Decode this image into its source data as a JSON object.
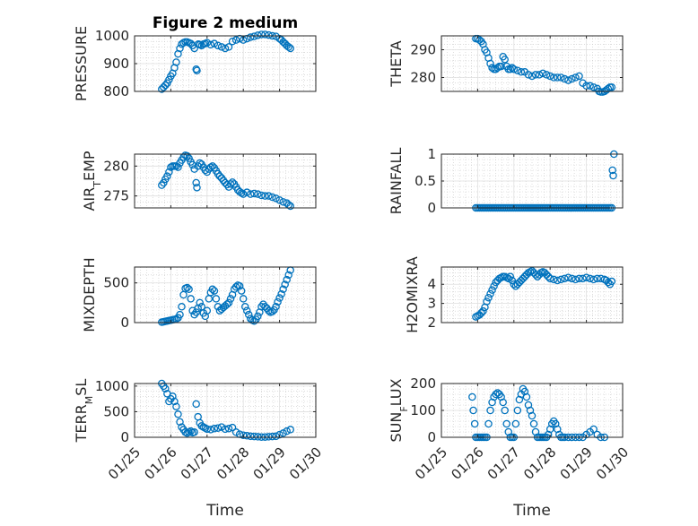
{
  "colors": {
    "marker": "#0072bd",
    "axis": "#262626",
    "grid": "#dfdfdf",
    "background": "#ffffff"
  },
  "figure": {
    "title": "Figure 2 medium",
    "xlabel": "Time"
  },
  "chart_data": [
    {
      "id": "pressure",
      "type": "scatter",
      "title": "Figure 2 medium",
      "ylabel": "PRESSURE",
      "xlim": [
        0,
        5
      ],
      "ylim": [
        800,
        1000
      ],
      "yticks": [
        800,
        900,
        1000
      ],
      "xtick_labels": [],
      "grid": true,
      "minor_grid": true,
      "x": [
        0.75,
        0.8,
        0.85,
        0.9,
        0.95,
        1.0,
        1.05,
        1.1,
        1.15,
        1.2,
        1.25,
        1.3,
        1.35,
        1.4,
        1.45,
        1.5,
        1.55,
        1.6,
        1.65,
        1.7,
        1.72,
        1.76,
        1.8,
        1.85,
        1.9,
        1.95,
        2.0,
        2.1,
        2.2,
        2.3,
        2.4,
        2.5,
        2.6,
        2.7,
        2.8,
        2.9,
        3.0,
        3.1,
        3.2,
        3.3,
        3.4,
        3.5,
        3.6,
        3.7,
        3.8,
        3.9,
        4.0,
        4.05,
        4.1,
        4.15,
        4.2,
        4.25,
        4.3
      ],
      "y": [
        808,
        815,
        822,
        830,
        842,
        855,
        865,
        885,
        905,
        935,
        955,
        970,
        975,
        978,
        978,
        975,
        972,
        965,
        955,
        880,
        875,
        970,
        968,
        965,
        970,
        972,
        975,
        968,
        972,
        965,
        960,
        955,
        960,
        980,
        985,
        990,
        985,
        990,
        995,
        998,
        1002,
        1005,
        1005,
        1003,
        1000,
        998,
        990,
        985,
        978,
        972,
        965,
        960,
        955
      ]
    },
    {
      "id": "theta",
      "type": "scatter",
      "ylabel": "THETA",
      "xlim": [
        0,
        5
      ],
      "ylim": [
        275,
        295
      ],
      "yticks": [
        280,
        290
      ],
      "xtick_labels": [],
      "grid": true,
      "minor_grid": true,
      "x": [
        0.95,
        1.0,
        1.05,
        1.1,
        1.15,
        1.2,
        1.25,
        1.3,
        1.35,
        1.4,
        1.45,
        1.5,
        1.55,
        1.6,
        1.65,
        1.7,
        1.75,
        1.8,
        1.85,
        1.9,
        1.95,
        2.0,
        2.1,
        2.2,
        2.3,
        2.4,
        2.5,
        2.6,
        2.7,
        2.8,
        2.9,
        3.0,
        3.1,
        3.2,
        3.3,
        3.4,
        3.5,
        3.6,
        3.7,
        3.8,
        3.9,
        4.0,
        4.1,
        4.2,
        4.3,
        4.35,
        4.4,
        4.45,
        4.5,
        4.55,
        4.6,
        4.65,
        4.7
      ],
      "y": [
        294,
        294,
        293.5,
        293,
        292,
        290,
        289,
        287,
        285,
        283.5,
        283,
        283,
        283.5,
        284,
        284,
        287.5,
        286.5,
        284,
        283,
        283,
        283.5,
        283,
        282.5,
        282,
        282,
        281,
        280.5,
        281,
        281,
        281.5,
        281,
        280.5,
        280,
        280,
        280,
        279.5,
        279,
        279.5,
        280,
        280.5,
        278,
        277,
        277,
        276.5,
        276,
        275,
        274.8,
        274.8,
        275,
        275.5,
        276,
        276.5,
        276.5
      ]
    },
    {
      "id": "air_temp",
      "type": "scatter",
      "ylabel": "AIR_TEMP",
      "xlim": [
        0,
        5
      ],
      "ylim": [
        273,
        282
      ],
      "yticks": [
        275,
        280
      ],
      "xtick_labels": [],
      "grid": true,
      "minor_grid": true,
      "x": [
        0.75,
        0.8,
        0.85,
        0.9,
        0.95,
        1.0,
        1.05,
        1.1,
        1.15,
        1.2,
        1.25,
        1.3,
        1.35,
        1.4,
        1.45,
        1.5,
        1.55,
        1.6,
        1.65,
        1.7,
        1.72,
        1.75,
        1.8,
        1.85,
        1.9,
        1.95,
        2.0,
        2.05,
        2.1,
        2.15,
        2.2,
        2.25,
        2.3,
        2.35,
        2.4,
        2.45,
        2.5,
        2.55,
        2.6,
        2.65,
        2.7,
        2.75,
        2.8,
        2.85,
        2.9,
        2.95,
        3.0,
        3.1,
        3.2,
        3.3,
        3.4,
        3.5,
        3.6,
        3.7,
        3.8,
        3.9,
        4.0,
        4.1,
        4.2,
        4.25,
        4.3
      ],
      "y": [
        276.8,
        277.2,
        277.8,
        278.3,
        279.0,
        279.8,
        280.0,
        280.0,
        280.0,
        279.8,
        280.5,
        281.0,
        281.5,
        281.8,
        281.7,
        281.3,
        280.7,
        280.2,
        279.5,
        277.2,
        276.4,
        280.0,
        280.5,
        280.3,
        279.8,
        279.3,
        279.0,
        279.5,
        279.8,
        280.0,
        279.7,
        279.2,
        278.7,
        278.3,
        278.0,
        277.6,
        277.2,
        276.9,
        276.5,
        277.0,
        277.3,
        277.0,
        276.5,
        276.0,
        275.7,
        275.5,
        275.3,
        275.6,
        275.3,
        275.4,
        275.3,
        275.1,
        275.0,
        275.0,
        274.8,
        274.6,
        274.3,
        274.0,
        273.8,
        273.5,
        273.3
      ]
    },
    {
      "id": "rainfall",
      "type": "scatter",
      "ylabel": "RAINFALL",
      "xlim": [
        0,
        5
      ],
      "ylim": [
        0,
        1
      ],
      "yticks": [
        0,
        0.5,
        1
      ],
      "xtick_labels": [],
      "grid": true,
      "minor_grid": true,
      "x": [
        0.95,
        1.0,
        1.05,
        1.1,
        1.15,
        1.2,
        1.25,
        1.3,
        1.35,
        1.4,
        1.45,
        1.5,
        1.55,
        1.6,
        1.65,
        1.7,
        1.75,
        1.8,
        1.85,
        1.9,
        1.95,
        2.0,
        2.05,
        2.1,
        2.15,
        2.2,
        2.25,
        2.3,
        2.35,
        2.4,
        2.45,
        2.5,
        2.55,
        2.6,
        2.65,
        2.7,
        2.75,
        2.8,
        2.85,
        2.9,
        2.95,
        3.0,
        3.05,
        3.1,
        3.15,
        3.2,
        3.25,
        3.3,
        3.35,
        3.4,
        3.45,
        3.5,
        3.55,
        3.6,
        3.65,
        3.7,
        3.75,
        3.8,
        3.85,
        3.9,
        3.95,
        4.0,
        4.05,
        4.1,
        4.15,
        4.2,
        4.25,
        4.3,
        4.35,
        4.4,
        4.45,
        4.5,
        4.55,
        4.6,
        4.65,
        4.7,
        4.72,
        4.74,
        4.76
      ],
      "y": [
        0,
        0,
        0,
        0,
        0,
        0,
        0,
        0,
        0,
        0,
        0,
        0,
        0,
        0,
        0,
        0,
        0,
        0,
        0,
        0,
        0,
        0,
        0,
        0,
        0,
        0,
        0,
        0,
        0,
        0,
        0,
        0,
        0,
        0,
        0,
        0,
        0,
        0,
        0,
        0,
        0,
        0,
        0,
        0,
        0,
        0,
        0,
        0,
        0,
        0,
        0,
        0,
        0,
        0,
        0,
        0,
        0,
        0,
        0,
        0,
        0,
        0,
        0,
        0,
        0,
        0,
        0,
        0,
        0,
        0,
        0,
        0,
        0,
        0,
        0,
        0,
        0.7,
        0.6,
        1.0
      ]
    },
    {
      "id": "mixdepth",
      "type": "scatter",
      "ylabel": "MIXDEPTH",
      "xlim": [
        0,
        5
      ],
      "ylim": [
        0,
        700
      ],
      "yticks": [
        0,
        500
      ],
      "xtick_labels": [],
      "grid": true,
      "minor_grid": true,
      "x": [
        0.75,
        0.8,
        0.85,
        0.9,
        0.95,
        1.0,
        1.05,
        1.1,
        1.15,
        1.2,
        1.25,
        1.3,
        1.35,
        1.4,
        1.45,
        1.5,
        1.55,
        1.6,
        1.65,
        1.7,
        1.75,
        1.8,
        1.85,
        1.9,
        1.95,
        2.0,
        2.05,
        2.1,
        2.15,
        2.2,
        2.25,
        2.3,
        2.35,
        2.4,
        2.45,
        2.5,
        2.55,
        2.6,
        2.65,
        2.7,
        2.75,
        2.8,
        2.85,
        2.9,
        2.95,
        3.0,
        3.05,
        3.1,
        3.15,
        3.2,
        3.25,
        3.3,
        3.35,
        3.4,
        3.45,
        3.5,
        3.55,
        3.6,
        3.65,
        3.7,
        3.75,
        3.8,
        3.85,
        3.9,
        3.95,
        4.0,
        4.05,
        4.1,
        4.15,
        4.2,
        4.25,
        4.3
      ],
      "y": [
        5,
        10,
        15,
        20,
        25,
        30,
        35,
        40,
        45,
        60,
        100,
        200,
        350,
        430,
        440,
        420,
        300,
        150,
        100,
        130,
        180,
        250,
        200,
        120,
        80,
        150,
        300,
        380,
        420,
        400,
        300,
        200,
        150,
        170,
        190,
        210,
        230,
        250,
        300,
        350,
        420,
        450,
        470,
        460,
        400,
        300,
        200,
        150,
        100,
        50,
        30,
        20,
        40,
        80,
        130,
        200,
        230,
        200,
        180,
        150,
        130,
        140,
        160,
        200,
        260,
        310,
        360,
        420,
        480,
        540,
        600,
        660
      ]
    },
    {
      "id": "h2omixra",
      "type": "scatter",
      "ylabel": "H2OMIXRA",
      "xlim": [
        0,
        5
      ],
      "ylim": [
        2,
        4.9
      ],
      "yticks": [
        2,
        3,
        4
      ],
      "xtick_labels": [],
      "grid": true,
      "minor_grid": true,
      "x": [
        0.95,
        1.0,
        1.05,
        1.1,
        1.15,
        1.2,
        1.25,
        1.3,
        1.35,
        1.4,
        1.45,
        1.5,
        1.55,
        1.6,
        1.65,
        1.7,
        1.75,
        1.8,
        1.85,
        1.9,
        1.95,
        2.0,
        2.05,
        2.1,
        2.15,
        2.2,
        2.25,
        2.3,
        2.35,
        2.4,
        2.45,
        2.5,
        2.55,
        2.6,
        2.65,
        2.7,
        2.75,
        2.8,
        2.85,
        2.9,
        2.95,
        3.0,
        3.1,
        3.2,
        3.3,
        3.4,
        3.5,
        3.6,
        3.7,
        3.8,
        3.9,
        4.0,
        4.1,
        4.2,
        4.3,
        4.4,
        4.5,
        4.55,
        4.6,
        4.65,
        4.7
      ],
      "y": [
        2.3,
        2.35,
        2.4,
        2.5,
        2.6,
        2.8,
        3.1,
        3.3,
        3.5,
        3.7,
        3.9,
        4.1,
        4.2,
        4.3,
        4.35,
        4.4,
        4.4,
        4.35,
        4.3,
        4.4,
        4.2,
        4.0,
        3.9,
        4.0,
        4.1,
        4.2,
        4.3,
        4.4,
        4.5,
        4.6,
        4.65,
        4.7,
        4.6,
        4.5,
        4.4,
        4.5,
        4.6,
        4.65,
        4.6,
        4.5,
        4.4,
        4.3,
        4.25,
        4.2,
        4.25,
        4.3,
        4.35,
        4.3,
        4.25,
        4.3,
        4.3,
        4.35,
        4.3,
        4.25,
        4.3,
        4.3,
        4.25,
        4.2,
        4.1,
        4.0,
        4.15
      ]
    },
    {
      "id": "terr_msl",
      "type": "scatter",
      "ylabel": "TERR_MSL",
      "xlim": [
        0,
        5
      ],
      "ylim": [
        0,
        1050
      ],
      "yticks": [
        0,
        500,
        1000
      ],
      "xtick_labels": [
        "01/25",
        "01/26",
        "01/27",
        "01/28",
        "01/29",
        "01/30"
      ],
      "grid": true,
      "minor_grid": true,
      "x": [
        0.75,
        0.8,
        0.85,
        0.9,
        0.95,
        1.0,
        1.05,
        1.1,
        1.15,
        1.2,
        1.25,
        1.3,
        1.35,
        1.4,
        1.45,
        1.5,
        1.55,
        1.6,
        1.65,
        1.7,
        1.75,
        1.8,
        1.85,
        1.9,
        1.95,
        2.0,
        2.1,
        2.2,
        2.3,
        2.4,
        2.5,
        2.6,
        2.7,
        2.8,
        2.9,
        3.0,
        3.1,
        3.2,
        3.3,
        3.4,
        3.5,
        3.6,
        3.7,
        3.8,
        3.9,
        4.0,
        4.1,
        4.2,
        4.3
      ],
      "y": [
        1050,
        1000,
        950,
        850,
        700,
        750,
        800,
        700,
        600,
        450,
        300,
        200,
        150,
        100,
        80,
        100,
        120,
        90,
        100,
        650,
        400,
        280,
        220,
        200,
        180,
        160,
        150,
        170,
        180,
        200,
        160,
        170,
        190,
        100,
        60,
        40,
        30,
        20,
        15,
        10,
        5,
        5,
        10,
        15,
        20,
        50,
        80,
        120,
        150
      ]
    },
    {
      "id": "sun_flux",
      "type": "scatter",
      "ylabel": "SUN_FLUX",
      "xlim": [
        0,
        5
      ],
      "ylim": [
        0,
        200
      ],
      "yticks": [
        0,
        100,
        200
      ],
      "xtick_labels": [
        "01/25",
        "01/26",
        "01/27",
        "01/28",
        "01/29",
        "01/30"
      ],
      "grid": true,
      "minor_grid": true,
      "x": [
        0.85,
        0.88,
        0.92,
        0.95,
        1.0,
        1.05,
        1.1,
        1.15,
        1.2,
        1.25,
        1.3,
        1.35,
        1.4,
        1.45,
        1.5,
        1.55,
        1.6,
        1.65,
        1.7,
        1.75,
        1.8,
        1.85,
        1.9,
        1.95,
        2.0,
        2.05,
        2.1,
        2.15,
        2.2,
        2.25,
        2.3,
        2.35,
        2.4,
        2.45,
        2.5,
        2.55,
        2.6,
        2.65,
        2.7,
        2.75,
        2.8,
        2.85,
        2.9,
        2.95,
        3.0,
        3.05,
        3.1,
        3.15,
        3.2,
        3.25,
        3.3,
        3.35,
        3.4,
        3.5,
        3.6,
        3.7,
        3.8,
        3.9,
        4.0,
        4.1,
        4.2,
        4.3,
        4.4,
        4.5
      ],
      "y": [
        150,
        100,
        50,
        0,
        0,
        0,
        0,
        0,
        0,
        0,
        50,
        100,
        130,
        150,
        160,
        165,
        160,
        150,
        130,
        100,
        50,
        20,
        0,
        0,
        0,
        50,
        100,
        140,
        160,
        180,
        170,
        150,
        120,
        100,
        80,
        50,
        20,
        0,
        0,
        0,
        0,
        0,
        0,
        10,
        30,
        50,
        60,
        50,
        30,
        10,
        0,
        0,
        0,
        0,
        0,
        0,
        0,
        0,
        10,
        20,
        30,
        10,
        0,
        0
      ]
    }
  ]
}
